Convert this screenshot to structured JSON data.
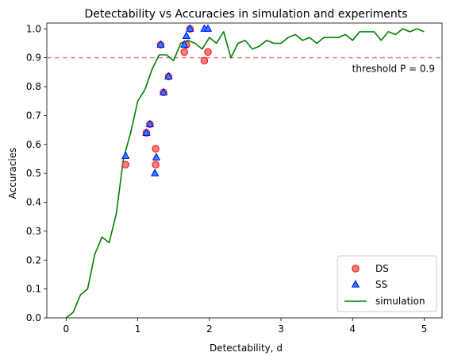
{
  "chart_data": {
    "type": "scatter",
    "title": "Detectability vs Accuracies in simulation and experiments",
    "xlabel": "Detectability, d",
    "ylabel": "Accuracies",
    "xlim": [
      -0.27,
      5.25
    ],
    "ylim": [
      0.0,
      1.02
    ],
    "xticks": [
      0,
      1,
      2,
      3,
      4,
      5
    ],
    "yticks": [
      0.0,
      0.1,
      0.2,
      0.3,
      0.4,
      0.5,
      0.6,
      0.7,
      0.8,
      0.9,
      1.0
    ],
    "grid": false,
    "legend_position": "lower-right",
    "threshold": {
      "y": 0.9,
      "label": "threshold P = 0.9",
      "color": "#f08080",
      "label_color": "#ff0000"
    },
    "series": [
      {
        "name": "DS",
        "kind": "scatter",
        "marker": "circle",
        "face_color": "#f08080",
        "edge_color": "#ff0000",
        "points": [
          [
            0.83,
            0.53
          ],
          [
            1.12,
            0.64
          ],
          [
            1.17,
            0.67
          ],
          [
            1.25,
            0.53
          ],
          [
            1.25,
            0.585
          ],
          [
            1.32,
            0.945
          ],
          [
            1.36,
            0.78
          ],
          [
            1.43,
            0.835
          ],
          [
            1.65,
            0.92
          ],
          [
            1.68,
            0.945
          ],
          [
            1.73,
            1.0
          ],
          [
            1.93,
            0.89
          ],
          [
            1.98,
            0.92
          ]
        ]
      },
      {
        "name": "SS",
        "kind": "scatter",
        "marker": "triangle",
        "face_color": "#1e90ff",
        "edge_color": "#0000ff",
        "points": [
          [
            0.83,
            0.56
          ],
          [
            1.12,
            0.64
          ],
          [
            1.17,
            0.67
          ],
          [
            1.24,
            0.5
          ],
          [
            1.26,
            0.555
          ],
          [
            1.32,
            0.945
          ],
          [
            1.36,
            0.78
          ],
          [
            1.43,
            0.835
          ],
          [
            1.65,
            0.945
          ],
          [
            1.68,
            0.975
          ],
          [
            1.73,
            1.0
          ],
          [
            1.93,
            1.0
          ],
          [
            1.98,
            1.0
          ]
        ]
      },
      {
        "name": "simulation",
        "kind": "line",
        "color": "#008000",
        "x": [
          0.0,
          0.1,
          0.2,
          0.3,
          0.4,
          0.5,
          0.6,
          0.7,
          0.8,
          0.9,
          1.0,
          1.1,
          1.2,
          1.3,
          1.4,
          1.5,
          1.6,
          1.7,
          1.8,
          1.9,
          2.0,
          2.1,
          2.2,
          2.3,
          2.4,
          2.5,
          2.6,
          2.7,
          2.8,
          2.9,
          3.0,
          3.1,
          3.2,
          3.3,
          3.4,
          3.5,
          3.6,
          3.7,
          3.8,
          3.9,
          4.0,
          4.1,
          4.2,
          4.3,
          4.4,
          4.5,
          4.6,
          4.7,
          4.8,
          4.9,
          5.0
        ],
        "y": [
          0.0,
          0.02,
          0.08,
          0.1,
          0.22,
          0.28,
          0.26,
          0.36,
          0.55,
          0.64,
          0.75,
          0.79,
          0.86,
          0.91,
          0.91,
          0.89,
          0.95,
          0.96,
          0.95,
          0.93,
          0.97,
          0.95,
          0.99,
          0.9,
          0.95,
          0.96,
          0.93,
          0.94,
          0.96,
          0.95,
          0.95,
          0.97,
          0.98,
          0.96,
          0.97,
          0.95,
          0.97,
          0.97,
          0.97,
          0.98,
          0.96,
          0.99,
          0.99,
          0.99,
          0.96,
          0.99,
          0.98,
          1.0,
          0.99,
          1.0,
          0.99
        ]
      }
    ]
  }
}
